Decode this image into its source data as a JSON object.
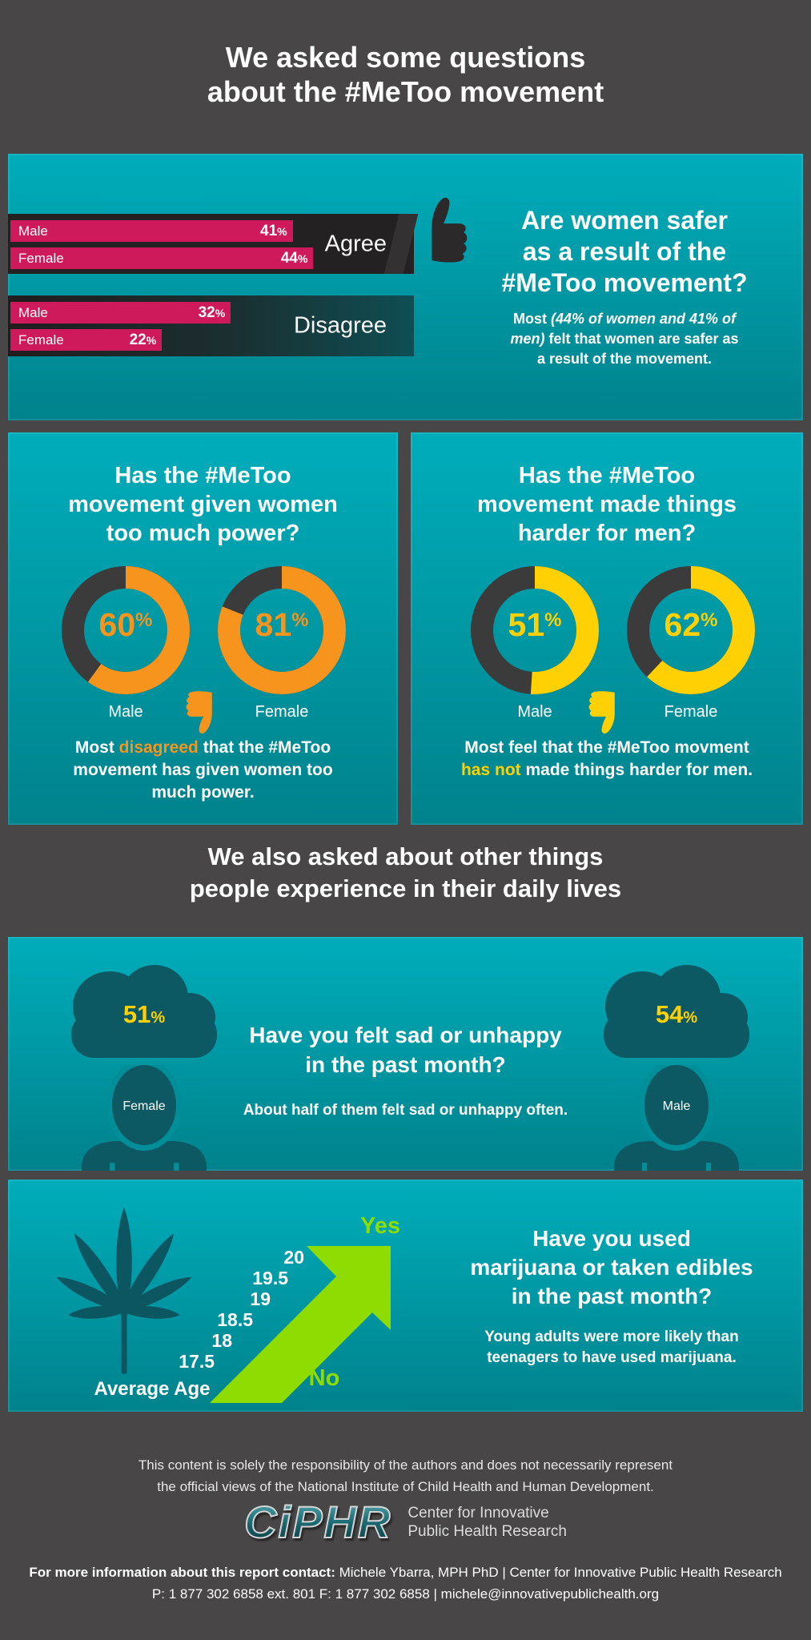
{
  "header": {
    "title": "We asked some questions\nabout the #MeToo movement"
  },
  "panel_safety": {
    "question": "Are women safer\nas a result of the\n#MeToo movement?",
    "answer_bold": "Most ",
    "answer_italic": "(44% of women and 41% of\nmen)",
    "answer_rest": " felt that women are safer as\na result of the movement.",
    "bar_color": "#ce1a5b",
    "groups": [
      {
        "label": "Agree",
        "bars": [
          {
            "label": "Male",
            "value": 41,
            "unit": "%"
          },
          {
            "label": "Female",
            "value": 44,
            "unit": "%"
          }
        ]
      },
      {
        "label": "Disagree",
        "bars": [
          {
            "label": "Male",
            "value": 32,
            "unit": "%"
          },
          {
            "label": "Female",
            "value": 22,
            "unit": "%"
          }
        ]
      }
    ]
  },
  "panel_power": {
    "question": "Has the #MeToo\nmovement given women\ntoo much power?",
    "accent": "#f7941e",
    "donuts": [
      {
        "label": "Male",
        "value": 60,
        "unit": "%"
      },
      {
        "label": "Female",
        "value": 81,
        "unit": "%"
      }
    ],
    "caption_pre": "Most ",
    "caption_accent": "disagreed",
    "caption_post": " that the #MeToo\nmovement has given women too\nmuch power."
  },
  "panel_harder": {
    "question": "Has the #MeToo\nmovement made things\nharder for men?",
    "accent": "#ffd105",
    "donuts": [
      {
        "label": "Male",
        "value": 51,
        "unit": "%"
      },
      {
        "label": "Female",
        "value": 62,
        "unit": "%"
      }
    ],
    "caption_pre": "Most feel that the #MeToo movment\n",
    "caption_accent": "has not",
    "caption_post": " made things harder for men."
  },
  "mid_heading": {
    "title": "We also asked about other things\npeople experience in their daily lives"
  },
  "panel_sad": {
    "question": "Have you felt sad or unhappy\nin the past month?",
    "subtext": "About half of them felt sad or unhappy often.",
    "figures": [
      {
        "label": "Female",
        "value": 51,
        "unit": "%"
      },
      {
        "label": "Male",
        "value": 54,
        "unit": "%"
      }
    ]
  },
  "panel_marijuana": {
    "question": "Have you used\nmarijuana or taken edibles\nin the past month?",
    "subtext": "Young adults were more likely than\nteenagers to have used marijuana.",
    "yes_label": "Yes",
    "no_label": "No",
    "axis_label": "Average Age",
    "ages": [
      "20",
      "19.5",
      "19",
      "18.5",
      "18",
      "17.5"
    ]
  },
  "footer": {
    "disclaimer": "This content is solely the responsibility of the authors and does not necessarily represent\nthe official views of the National Institute of Child Health and Human Development.",
    "logo_text": "CiPHR",
    "logo_caption": "Center for Innovative\nPublic Health Research",
    "contact_bold": "For more information about this report contact:",
    "contact_rest": " Michele Ybarra, MPH PhD  |  Center for Innovative Public Health Research",
    "contact_line2": "P: 1 877 302 6858 ext. 801    F: 1 877 302 6858  |  michele@innovativepublichealth.org"
  },
  "colors": {
    "page_bg": "#484646",
    "panel_teal_top": "#00adbb",
    "panel_teal_bottom": "#00828c",
    "bar_pink": "#ce1a5b",
    "band_dark": "#242122",
    "orange": "#f7941e",
    "yellow": "#ffd105",
    "lime": "#8fdc02",
    "silhouette_teal": "#0c5963"
  },
  "chart_data": [
    {
      "type": "bar",
      "title": "Are women safer as a result of the #MeToo movement?",
      "categories": [
        "Male",
        "Female"
      ],
      "series": [
        {
          "name": "Agree",
          "values": [
            41,
            44
          ]
        },
        {
          "name": "Disagree",
          "values": [
            32,
            22
          ]
        }
      ],
      "unit": "%",
      "orientation": "horizontal",
      "bar_color": "#ce1a5b"
    },
    {
      "type": "pie",
      "title": "Has the #MeToo movement given women too much power? (% disagreed)",
      "categories": [
        "Male",
        "Female"
      ],
      "values": [
        60,
        81
      ],
      "unit": "%",
      "style": "donut",
      "accent": "#f7941e"
    },
    {
      "type": "pie",
      "title": "Has the #MeToo movement made things harder for men?",
      "categories": [
        "Male",
        "Female"
      ],
      "values": [
        51,
        62
      ],
      "unit": "%",
      "style": "donut",
      "accent": "#ffd105"
    },
    {
      "type": "pie",
      "title": "Have you felt sad or unhappy in the past month?",
      "categories": [
        "Female",
        "Male"
      ],
      "values": [
        51,
        54
      ],
      "unit": "%",
      "style": "pictogram"
    },
    {
      "type": "line",
      "title": "Have you used marijuana or taken edibles in the past month?",
      "xlabel": "Average Age",
      "x": [
        17.5,
        18,
        18.5,
        19,
        19.5,
        20
      ],
      "annotation": "Arrow rises from No to Yes — use increases with average age"
    }
  ]
}
